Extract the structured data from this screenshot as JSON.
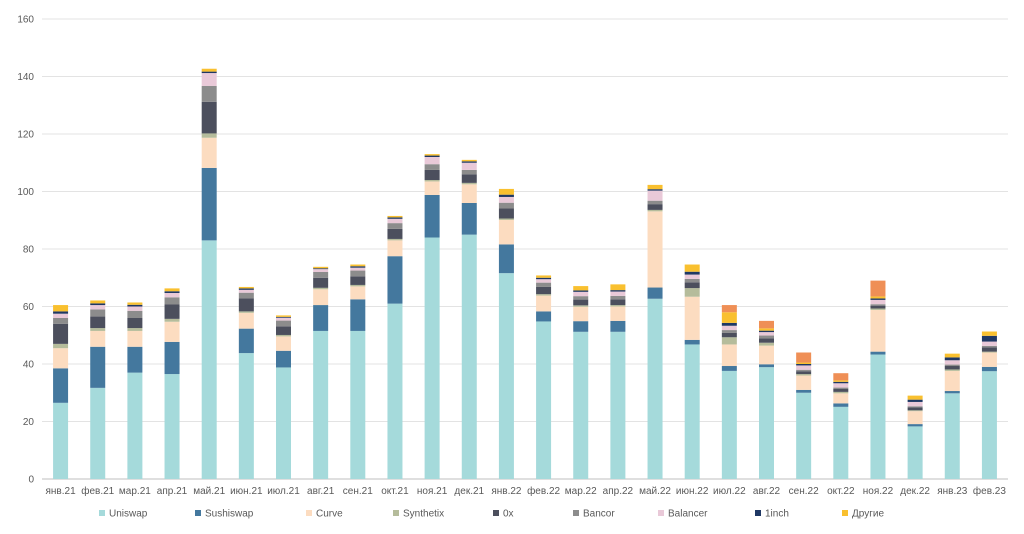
{
  "chart_data": {
    "type": "bar",
    "stacked": true,
    "title": "",
    "xlabel": "",
    "ylabel": "",
    "ylim": [
      0,
      160
    ],
    "yticks": [
      0,
      20,
      40,
      60,
      80,
      100,
      120,
      140,
      160
    ],
    "grid": true,
    "legend_position": "bottom",
    "categories": [
      "янв.21",
      "фев.21",
      "мар.21",
      "апр.21",
      "май.21",
      "июн.21",
      "июл.21",
      "авг.21",
      "сен.21",
      "окт.21",
      "ноя.21",
      "дек.21",
      "янв.22",
      "фев.22",
      "мар.22",
      "апр.22",
      "май.22",
      "июн.22",
      "июл.22",
      "авг.22",
      "сен.22",
      "окт.22",
      "ноя.22",
      "дек.22",
      "янв.23",
      "фев.23"
    ],
    "series": [
      {
        "name": "Uniswap",
        "color": "#a5dadb",
        "values": [
          26.5,
          31.7,
          37.0,
          36.5,
          83.0,
          43.8,
          38.8,
          51.5,
          51.5,
          61.0,
          84.0,
          85.0,
          71.6,
          54.8,
          51.2,
          51.2,
          62.7,
          46.8,
          37.6,
          38.9,
          30.0,
          25.1,
          43.3,
          18.3,
          29.8,
          37.5
        ]
      },
      {
        "name": "Sushiswap",
        "color": "#44789e",
        "values": [
          12.0,
          14.3,
          9.0,
          11.2,
          25.2,
          8.5,
          5.8,
          9.0,
          11.0,
          16.5,
          14.8,
          11.0,
          10.0,
          3.5,
          3.7,
          3.8,
          3.9,
          1.6,
          1.7,
          1.0,
          1.0,
          1.2,
          1.0,
          0.8,
          0.8,
          1.5
        ]
      },
      {
        "name": "Curve",
        "color": "#fcdcc0",
        "values": [
          7.0,
          5.5,
          5.5,
          7.0,
          10.5,
          5.5,
          5.0,
          5.5,
          4.5,
          5.5,
          4.7,
          6.5,
          8.5,
          5.5,
          5.0,
          5.0,
          26.5,
          15.0,
          7.5,
          6.5,
          5.0,
          3.5,
          14.5,
          4.5,
          7.0,
          5.0
        ]
      },
      {
        "name": "Synthetix",
        "color": "#b5bc9b",
        "values": [
          1.5,
          1.0,
          1.0,
          1.0,
          1.5,
          0.5,
          0.5,
          0.5,
          0.5,
          0.5,
          0.5,
          0.5,
          0.5,
          0.5,
          0.5,
          0.5,
          0.5,
          3.0,
          2.5,
          1.0,
          0.5,
          0.5,
          0.5,
          0.3,
          0.5,
          0.3
        ]
      },
      {
        "name": "0x",
        "color": "#4c4f5d",
        "values": [
          7.0,
          4.0,
          3.5,
          5.0,
          11.0,
          4.5,
          3.0,
          3.5,
          3.0,
          3.5,
          3.5,
          3.0,
          3.5,
          2.5,
          2.0,
          2.0,
          2.0,
          2.0,
          1.5,
          1.5,
          1.0,
          1.0,
          1.0,
          1.0,
          1.2,
          1.5
        ]
      },
      {
        "name": "Bancor",
        "color": "#8c8c8c",
        "values": [
          2.0,
          2.5,
          2.5,
          2.5,
          5.5,
          2.0,
          2.0,
          2.0,
          2.0,
          2.0,
          2.0,
          1.5,
          2.0,
          1.5,
          1.2,
          1.2,
          1.2,
          1.2,
          1.0,
          1.0,
          0.5,
          0.5,
          0.5,
          0.4,
          0.5,
          0.5
        ]
      },
      {
        "name": "Balancer",
        "color": "#e9c9d8",
        "values": [
          1.5,
          1.5,
          1.5,
          1.5,
          4.5,
          1.0,
          1.0,
          1.0,
          1.0,
          1.5,
          2.5,
          2.5,
          2.0,
          1.2,
          1.5,
          1.5,
          3.5,
          1.5,
          1.5,
          1.2,
          1.5,
          1.5,
          1.5,
          1.5,
          1.5,
          1.5
        ]
      },
      {
        "name": "1inch",
        "color": "#1f3864",
        "values": [
          0.8,
          0.6,
          0.6,
          0.6,
          0.5,
          0.5,
          0.3,
          0.3,
          0.5,
          0.5,
          0.5,
          0.5,
          0.8,
          0.5,
          0.5,
          0.5,
          0.5,
          1.0,
          1.0,
          0.5,
          0.5,
          0.5,
          0.5,
          0.8,
          1.0,
          2.0
        ]
      },
      {
        "name": "Другие",
        "color": "#f9c02f",
        "values": [
          2.2,
          1.0,
          0.8,
          1.0,
          1.0,
          0.5,
          0.5,
          0.5,
          0.6,
          0.5,
          0.5,
          0.5,
          2.0,
          0.8,
          1.5,
          2.0,
          1.5,
          2.5,
          3.7,
          0.8,
          0.5,
          0.5,
          0.7,
          1.4,
          1.3,
          1.5
        ]
      },
      {
        "name": "",
        "color": "#ef8f56",
        "values": [
          0,
          0,
          0,
          0,
          0,
          0,
          0,
          0,
          0,
          0,
          0,
          0,
          0,
          0,
          0,
          0,
          0,
          0,
          2.5,
          2.6,
          3.5,
          2.5,
          5.5,
          0,
          0,
          0
        ]
      }
    ]
  }
}
